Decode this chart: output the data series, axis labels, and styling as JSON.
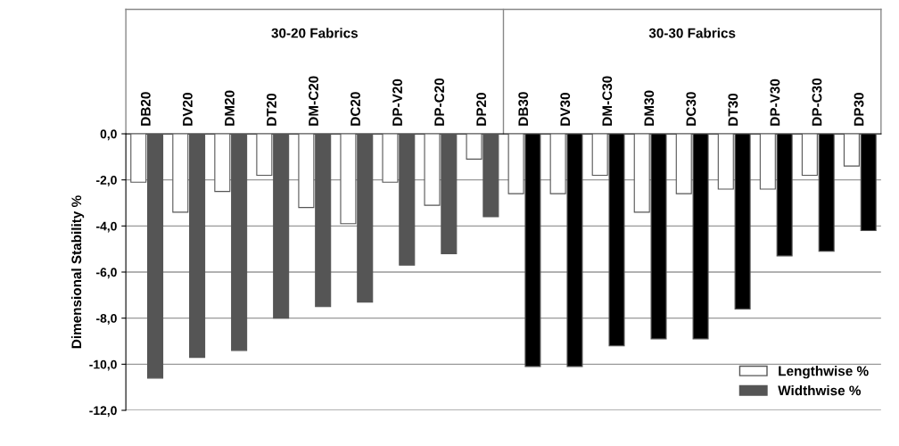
{
  "chart_data": {
    "type": "bar",
    "ylabel": "Dimensional Stability %",
    "categories": [
      "DB20",
      "DV20",
      "DM20",
      "DT20",
      "DM-C20",
      "DC20",
      "DP-V20",
      "DP-C20",
      "DP20",
      "DB30",
      "DV30",
      "DM-C30",
      "DM30",
      "DC30",
      "DT30",
      "DP-V30",
      "DP-C30",
      "DP30"
    ],
    "series": [
      {
        "name": "Lengthwise %",
        "color": "#ffffff",
        "values": [
          -2.1,
          -3.4,
          -2.5,
          -1.8,
          -3.2,
          -3.9,
          -2.1,
          -3.1,
          -1.1,
          -2.6,
          -2.6,
          -1.8,
          -3.4,
          -2.6,
          -2.4,
          -2.4,
          -1.8,
          -1.4
        ]
      },
      {
        "name": "Widthwise %",
        "color": "#555555",
        "colors": [
          "#555555",
          "#555555",
          "#555555",
          "#555555",
          "#555555",
          "#555555",
          "#555555",
          "#555555",
          "#555555",
          "#000000",
          "#000000",
          "#000000",
          "#000000",
          "#000000",
          "#000000",
          "#000000",
          "#000000",
          "#000000"
        ],
        "values": [
          -10.6,
          -9.7,
          -9.4,
          -8.0,
          -7.5,
          -7.3,
          -5.7,
          -5.2,
          -3.6,
          -10.1,
          -10.1,
          -9.2,
          -8.9,
          -8.9,
          -7.6,
          -5.3,
          -5.1,
          -4.2
        ]
      }
    ],
    "annotations": [
      "30-20 Fabrics",
      "30-30 Fabrics"
    ],
    "ylim": [
      -12,
      0
    ],
    "yticks": [
      {
        "value": 0,
        "label": "0,0"
      },
      {
        "value": -2,
        "label": "-2,0"
      },
      {
        "value": -4,
        "label": "-4,0"
      },
      {
        "value": -6,
        "label": "-6,0"
      },
      {
        "value": -8,
        "label": "-8,0"
      },
      {
        "value": -10,
        "label": "-10,0"
      },
      {
        "value": -12,
        "label": "-12,0"
      }
    ],
    "grid": "y",
    "legend": "bottom right"
  }
}
